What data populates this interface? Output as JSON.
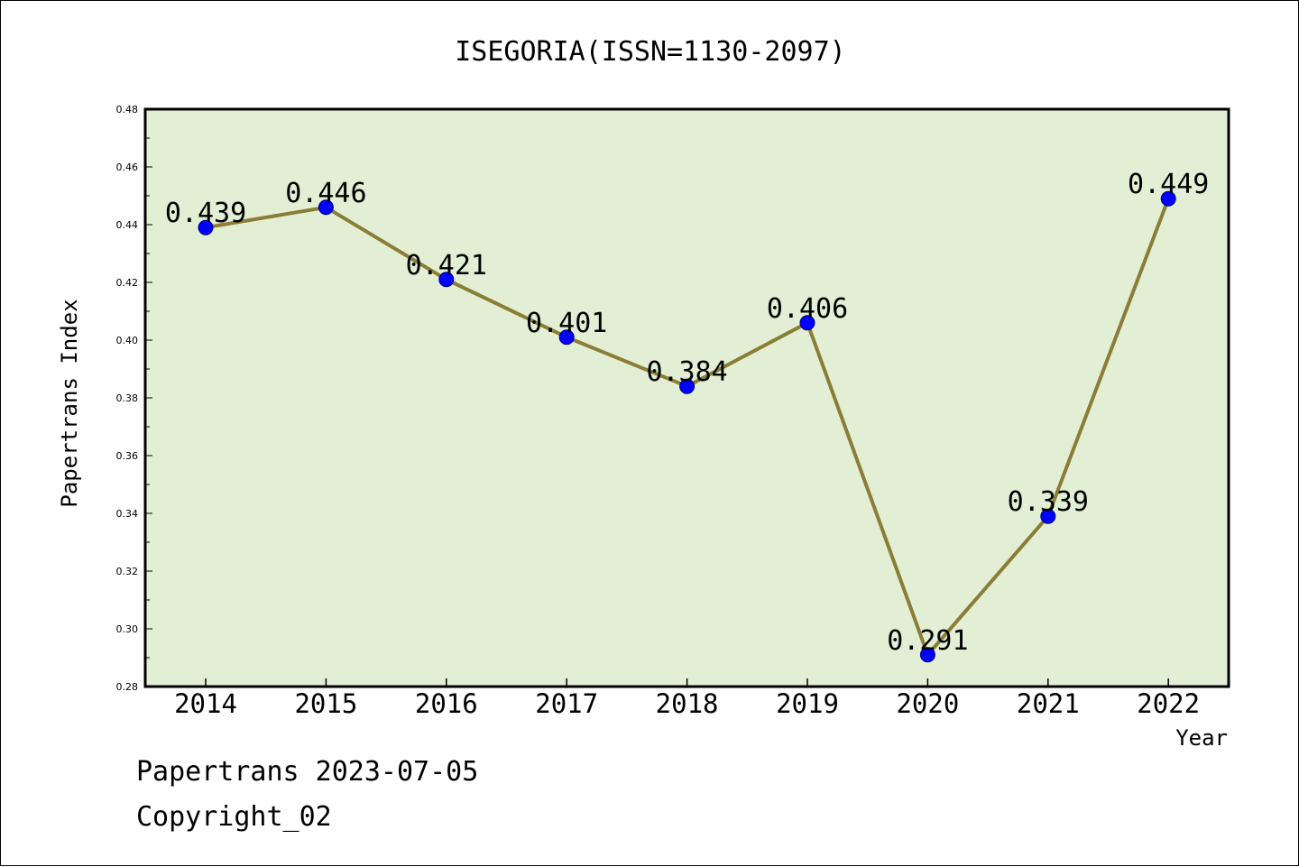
{
  "chart_data": {
    "type": "line",
    "title": "ISEGORIA(ISSN=1130-2097)",
    "xlabel": "Year",
    "ylabel": "Papertrans Index",
    "categories": [
      "2014",
      "2015",
      "2016",
      "2017",
      "2018",
      "2019",
      "2020",
      "2021",
      "2022"
    ],
    "series": [
      {
        "values": [
          0.439,
          0.446,
          0.421,
          0.401,
          0.384,
          0.406,
          0.291,
          0.339,
          0.449
        ],
        "labels": [
          "0.439",
          "0.446",
          "0.421",
          "0.401",
          "0.384",
          "0.406",
          "0.291",
          "0.339",
          "0.449"
        ]
      }
    ],
    "ylim": [
      0.28,
      0.48
    ],
    "yticks": [
      "0.28",
      "0.30",
      "0.32",
      "0.34",
      "0.36",
      "0.38",
      "0.40",
      "0.42",
      "0.44",
      "0.46",
      "0.48"
    ],
    "grid": false,
    "colors": {
      "plot_background": "#e2efd5",
      "line": "#8b7d35",
      "marker": "#0000ff"
    }
  },
  "footer": {
    "line1": "Papertrans 2023-07-05",
    "line2": "Copyright_02"
  }
}
